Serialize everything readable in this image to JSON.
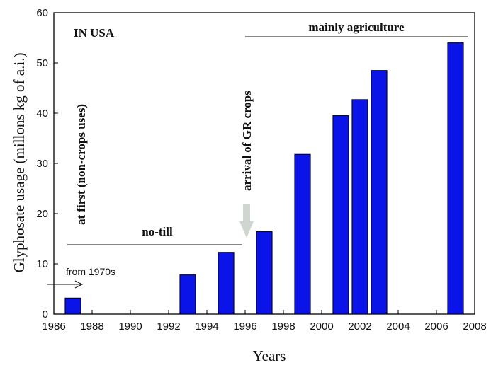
{
  "chart_data": {
    "type": "bar",
    "title": "",
    "xlabel": "Years",
    "ylabel": "Glyphosate usage (millons kg of a.i.)",
    "xlim": [
      1986,
      2008
    ],
    "ylim": [
      0,
      60
    ],
    "x_ticks": [
      1986,
      1988,
      1990,
      1992,
      1994,
      1996,
      1998,
      2000,
      2002,
      2004,
      2006,
      2008
    ],
    "y_ticks": [
      0,
      10,
      20,
      30,
      40,
      50,
      60
    ],
    "bar_color": "#0a14e8",
    "bars": [
      {
        "x": 1987,
        "value": 3.2
      },
      {
        "x": 1993,
        "value": 7.8
      },
      {
        "x": 1995,
        "value": 12.3
      },
      {
        "x": 1997,
        "value": 16.4
      },
      {
        "x": 1999,
        "value": 31.8
      },
      {
        "x": 2001,
        "value": 39.5
      },
      {
        "x": 2002,
        "value": 42.7
      },
      {
        "x": 2003,
        "value": 48.5
      },
      {
        "x": 2007,
        "value": 54.0
      }
    ],
    "annotations": {
      "region_label": "IN USA",
      "from_label": "from 1970s",
      "first_label": "at first (non-crops uses)",
      "notill_label": "no-till",
      "gr_label": "arrival of GR crops",
      "agri_label": "mainly agriculture"
    },
    "grid": false,
    "legend": "none"
  }
}
